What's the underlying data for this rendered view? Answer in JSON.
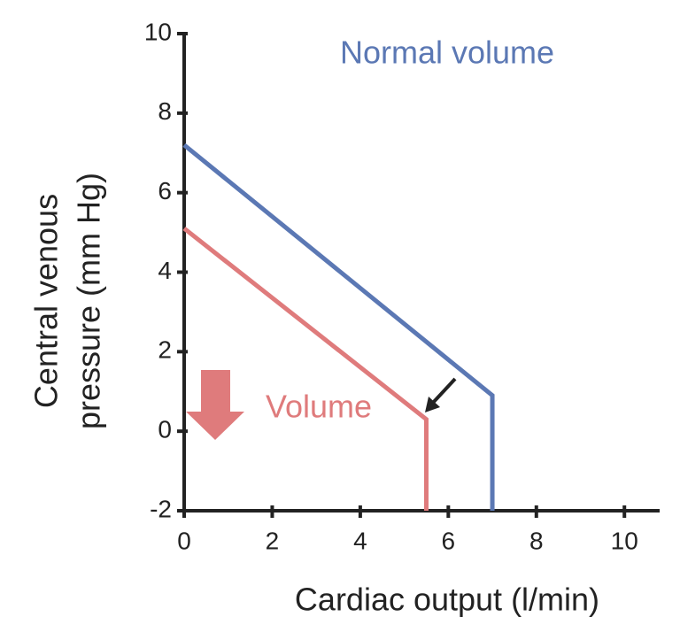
{
  "chart_data": {
    "type": "line",
    "xlabel": "Cardiac output (l/min)",
    "ylabel": [
      "Central venous",
      "pressure (mm Hg)"
    ],
    "xlim": [
      0,
      10.8
    ],
    "ylim": [
      -2,
      10
    ],
    "xticks": [
      0,
      2,
      4,
      6,
      8,
      10
    ],
    "yticks": [
      -2,
      0,
      2,
      4,
      6,
      8,
      10
    ],
    "series": [
      {
        "name": "Normal volume",
        "color": "#5b78b4",
        "x": [
          0,
          7.0,
          7.0
        ],
        "values": [
          7.2,
          0.9,
          -2
        ]
      },
      {
        "name": "Volume",
        "color": "#df7b7c",
        "x": [
          0,
          5.5,
          5.5
        ],
        "values": [
          5.1,
          0.3,
          -2
        ]
      }
    ]
  }
}
